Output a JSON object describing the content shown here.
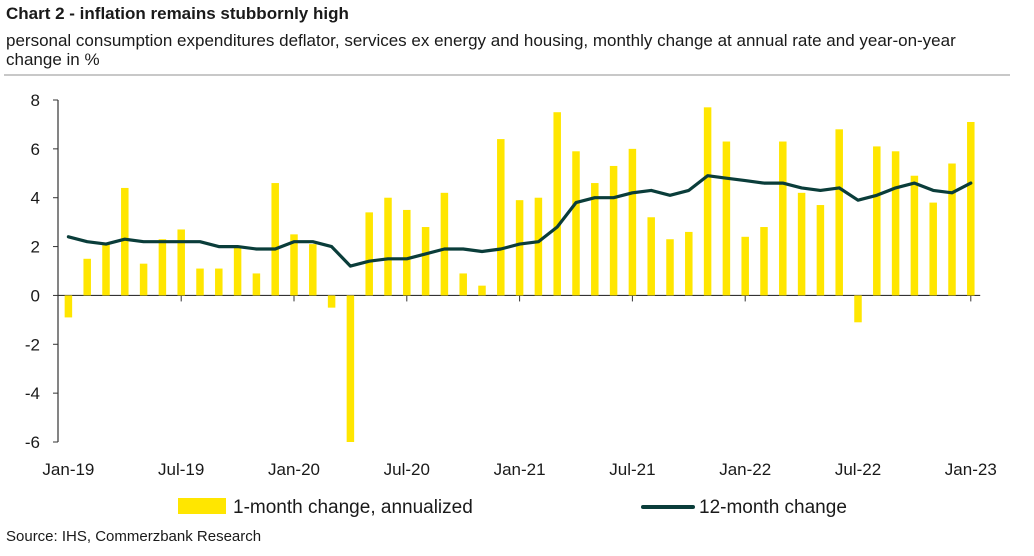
{
  "title": "Chart 2 - inflation remains stubbornly high",
  "subtitle": "personal consumption expenditures deflator, services ex energy and housing, monthly change at annual rate and year-on-year change in %",
  "source": "Source: IHS, Commerzbank Research",
  "colors": {
    "bars": "#FFE600",
    "line": "#0A3D3A",
    "axis": "#333333"
  },
  "chart_data": {
    "type": "bar+line",
    "x": [
      "Jan-19",
      "Feb-19",
      "Mar-19",
      "Apr-19",
      "May-19",
      "Jun-19",
      "Jul-19",
      "Aug-19",
      "Sep-19",
      "Oct-19",
      "Nov-19",
      "Dec-19",
      "Jan-20",
      "Feb-20",
      "Mar-20",
      "Apr-20",
      "May-20",
      "Jun-20",
      "Jul-20",
      "Aug-20",
      "Sep-20",
      "Oct-20",
      "Nov-20",
      "Dec-20",
      "Jan-21",
      "Feb-21",
      "Mar-21",
      "Apr-21",
      "May-21",
      "Jun-21",
      "Jul-21",
      "Aug-21",
      "Sep-21",
      "Oct-21",
      "Nov-21",
      "Dec-21",
      "Jan-22",
      "Feb-22",
      "Mar-22",
      "Apr-22",
      "May-22",
      "Jun-22",
      "Jul-22",
      "Aug-22",
      "Sep-22",
      "Oct-22",
      "Nov-22",
      "Dec-22",
      "Jan-23"
    ],
    "tick_labels": [
      "Jan-19",
      "Jul-19",
      "Jan-20",
      "Jul-20",
      "Jan-21",
      "Jul-21",
      "Jan-22",
      "Jul-22",
      "Jan-23"
    ],
    "ylim": [
      -6,
      8
    ],
    "yticks": [
      8,
      6,
      4,
      2,
      0,
      -2,
      -4,
      -6
    ],
    "series": [
      {
        "name": "1-month change, annualized",
        "kind": "bar",
        "values": [
          -0.9,
          1.5,
          2.1,
          4.4,
          1.3,
          2.3,
          2.7,
          1.1,
          1.1,
          2.0,
          0.9,
          4.6,
          2.5,
          2.1,
          -0.5,
          -6.0,
          3.4,
          4.0,
          3.5,
          2.8,
          4.2,
          0.9,
          0.4,
          6.4,
          3.9,
          4.0,
          7.5,
          5.9,
          4.6,
          5.3,
          6.0,
          3.2,
          2.3,
          2.6,
          7.7,
          6.3,
          2.4,
          2.8,
          6.3,
          4.2,
          3.7,
          6.8,
          -1.1,
          6.1,
          5.9,
          4.9,
          3.8,
          5.4,
          7.1
        ]
      },
      {
        "name": "12-month change",
        "kind": "line",
        "values": [
          2.4,
          2.2,
          2.1,
          2.3,
          2.2,
          2.2,
          2.2,
          2.2,
          2.0,
          2.0,
          1.9,
          1.9,
          2.2,
          2.2,
          2.0,
          1.2,
          1.4,
          1.5,
          1.5,
          1.7,
          1.9,
          1.9,
          1.8,
          1.9,
          2.1,
          2.2,
          2.8,
          3.8,
          4.0,
          4.0,
          4.2,
          4.3,
          4.1,
          4.3,
          4.9,
          4.8,
          4.7,
          4.6,
          4.6,
          4.4,
          4.3,
          4.4,
          3.9,
          4.1,
          4.4,
          4.6,
          4.3,
          4.2,
          4.6
        ]
      }
    ],
    "legend": "bottom",
    "grid": false
  }
}
